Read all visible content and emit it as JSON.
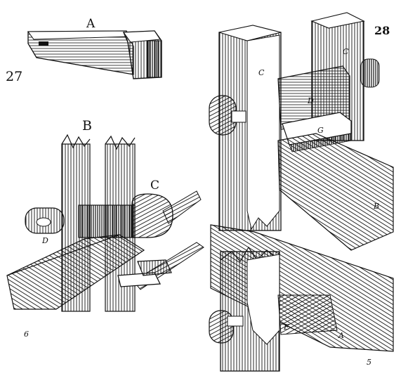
{
  "figures": {
    "fig27": {
      "number": "27",
      "labels": {
        "a": "A"
      }
    },
    "fig_b": {
      "labels": {
        "b": "B",
        "c": "C",
        "d": "D"
      },
      "corner_mark": "6"
    },
    "fig28": {
      "number": "28",
      "labels": {
        "c_top": "C",
        "c_post": "C",
        "d": "D",
        "g": "G",
        "b": "B",
        "e": "E",
        "a": "A"
      },
      "corner_mark": "5"
    }
  },
  "colors": {
    "ink": "#111111",
    "paper": "#ffffff"
  }
}
